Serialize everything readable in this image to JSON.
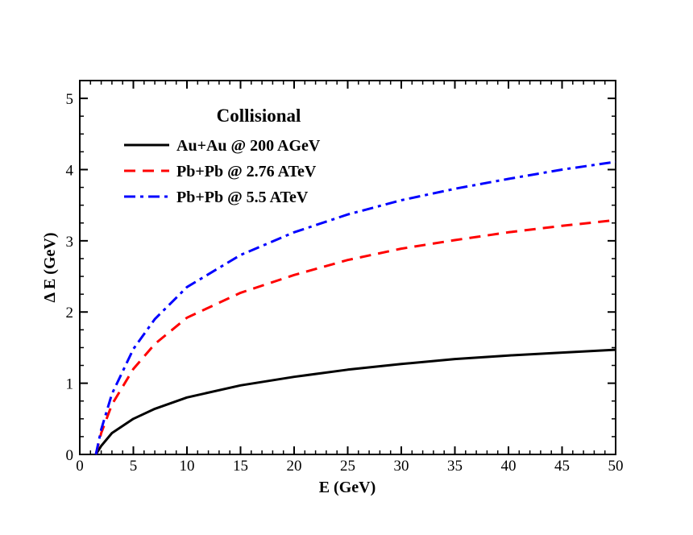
{
  "chart_data": {
    "type": "line",
    "title": "",
    "legend_title": "Collisional",
    "xlabel": "E (GeV)",
    "ylabel": "Δ E (GeV)",
    "xlim": [
      0,
      50
    ],
    "ylim": [
      0,
      5.25
    ],
    "xticks": [
      0,
      5,
      10,
      15,
      20,
      25,
      30,
      35,
      40,
      45,
      50
    ],
    "yticks": [
      0,
      1,
      2,
      3,
      4,
      5
    ],
    "legend_position": "top-left",
    "grid": false,
    "x": [
      1.5,
      2,
      3,
      5,
      7,
      10,
      15,
      20,
      25,
      30,
      35,
      40,
      45,
      50
    ],
    "series": [
      {
        "name": "Au+Au @ 200 AGeV",
        "color": "#000000",
        "style": "solid",
        "values": [
          0.0,
          0.12,
          0.3,
          0.5,
          0.64,
          0.8,
          0.97,
          1.09,
          1.19,
          1.27,
          1.34,
          1.39,
          1.43,
          1.47
        ]
      },
      {
        "name": "Pb+Pb @ 2.76 ATeV",
        "color": "#ff0000",
        "style": "dashed",
        "values": [
          0.0,
          0.3,
          0.7,
          1.2,
          1.55,
          1.92,
          2.27,
          2.52,
          2.73,
          2.89,
          3.01,
          3.12,
          3.21,
          3.29
        ]
      },
      {
        "name": "Pb+Pb @ 5.5 ATeV",
        "color": "#0000ff",
        "style": "dashdot",
        "values": [
          0.0,
          0.35,
          0.85,
          1.48,
          1.9,
          2.35,
          2.8,
          3.12,
          3.37,
          3.57,
          3.73,
          3.87,
          4.0,
          4.11
        ]
      }
    ]
  }
}
